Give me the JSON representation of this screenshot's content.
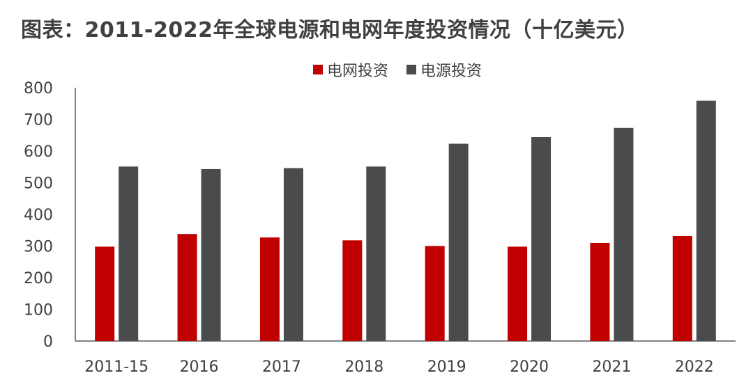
{
  "title": "图表：2011-2022年全球电源和电网年度投资情况（十亿美元）",
  "chart_data": {
    "type": "bar",
    "title": "图表：2011-2022年全球电源和电网年度投资情况（十亿美元）",
    "xlabel": "",
    "ylabel": "",
    "ylim": [
      0,
      800
    ],
    "yticks": [
      0,
      100,
      200,
      300,
      400,
      500,
      600,
      700,
      800
    ],
    "grid": false,
    "legend_position": "top",
    "categories": [
      "2011-15",
      "2016",
      "2017",
      "2018",
      "2019",
      "2020",
      "2021",
      "2022"
    ],
    "series": [
      {
        "name": "电网投资",
        "color": "#c00000",
        "values": [
          298,
          338,
          327,
          318,
          300,
          298,
          310,
          332
        ]
      },
      {
        "name": "电源投资",
        "color": "#4a4b4d",
        "values": [
          551,
          543,
          546,
          551,
          623,
          644,
          673,
          759
        ]
      }
    ]
  }
}
